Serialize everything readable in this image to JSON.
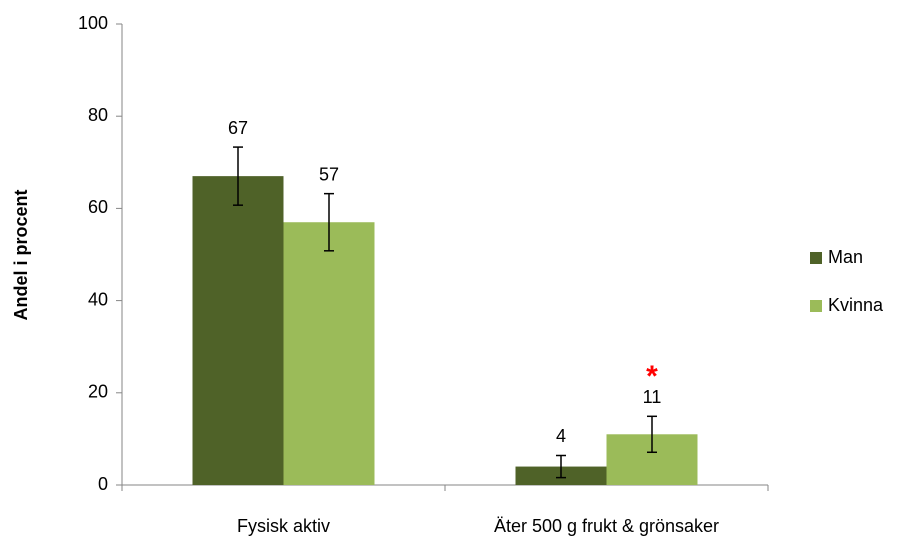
{
  "chart_data": {
    "type": "bar",
    "y_label": "Andel i procent",
    "categories": [
      "Fysisk aktiv",
      "Äter 500 g frukt & grönsaker"
    ],
    "series": [
      {
        "name": "Man",
        "color": "#4f6228",
        "values": [
          67,
          4
        ],
        "errors": [
          6.3,
          2.4
        ]
      },
      {
        "name": "Kvinna",
        "color": "#9bbb59",
        "values": [
          57,
          11
        ],
        "errors": [
          6.2,
          3.9
        ]
      }
    ],
    "annotations": [
      {
        "text": "*",
        "color": "#ff0000",
        "series": 1,
        "category": 1
      }
    ],
    "ylim": [
      0,
      100
    ],
    "yticks": [
      0,
      20,
      40,
      60,
      80,
      100
    ],
    "legend": "right",
    "grid": false
  }
}
